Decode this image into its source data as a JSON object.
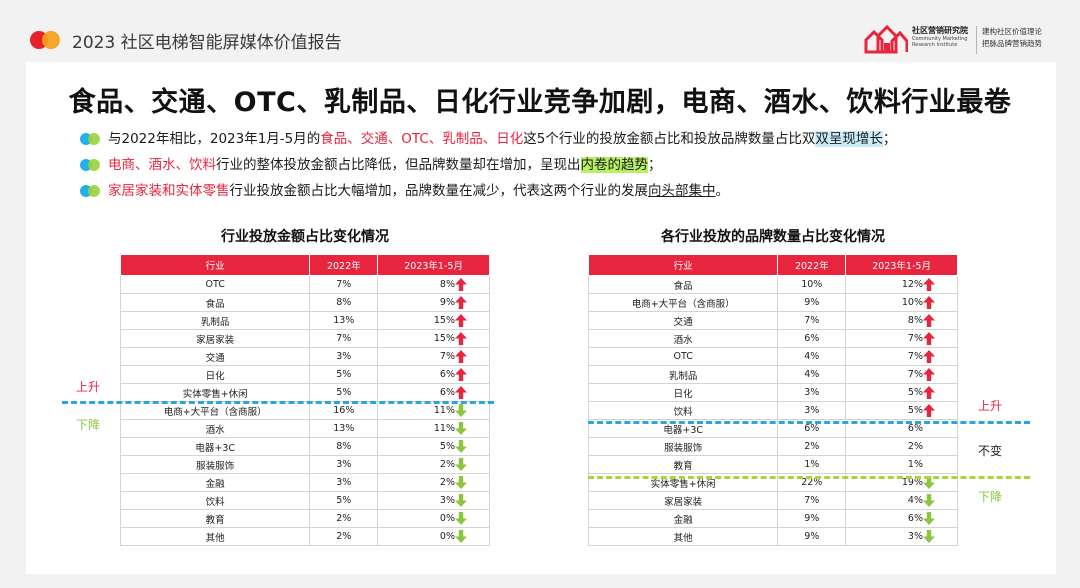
{
  "header": {
    "report_title": "2023 社区电梯智能屏媒体价值报告",
    "brand_name": "社区营销研究院",
    "brand_en": "Community Marketing Research Institute",
    "brand_slogan_1": "建构社区价值理论",
    "brand_slogan_2": "把脉品牌营销趋势"
  },
  "headline": "食品、交通、OTC、乳制品、日化行业竞争加剧，电商、酒水、饮料行业最卷",
  "bullets": {
    "b1": {
      "pre": "与2022年相比，2023年1月-5月的",
      "red": "食品、交通、OTC、乳制品、日化",
      "mid": "这5个行业的投放金额占比和投放品牌数量占比双",
      "hl": "双呈现增长",
      "post": "；"
    },
    "b2": {
      "red": "电商、酒水、饮料",
      "mid": "行业的整体投放金额占比降低，但品牌数量却在增加，呈现出",
      "hl": "内卷的趋势",
      "post": "；"
    },
    "b3": {
      "red": "家居家装和实体零售",
      "mid": "行业投放金额占比大幅增加，品牌数量在减少，代表这两个行业的发展",
      "ul": "向头部集中",
      "post": "。"
    }
  },
  "colors": {
    "accent_red": "#e8253f",
    "up": "#e8253f",
    "down": "#8cc63f",
    "blue_line": "#2aa5e0",
    "green_line": "#a8d43c"
  },
  "labels": {
    "up": "上升",
    "down": "下降",
    "same": "不变"
  },
  "table1": {
    "title": "行业投放金额占比变化情况",
    "headers": [
      "行业",
      "2022年",
      "2023年1-5月"
    ],
    "rows": [
      {
        "name": "OTC",
        "y2022": "7%",
        "y2023": "8%",
        "trend": "up"
      },
      {
        "name": "食品",
        "y2022": "8%",
        "y2023": "9%",
        "trend": "up"
      },
      {
        "name": "乳制品",
        "y2022": "13%",
        "y2023": "15%",
        "trend": "up"
      },
      {
        "name": "家居家装",
        "y2022": "7%",
        "y2023": "15%",
        "trend": "up"
      },
      {
        "name": "交通",
        "y2022": "3%",
        "y2023": "7%",
        "trend": "up"
      },
      {
        "name": "日化",
        "y2022": "5%",
        "y2023": "6%",
        "trend": "up"
      },
      {
        "name": "实体零售+休闲",
        "y2022": "5%",
        "y2023": "6%",
        "trend": "up"
      },
      {
        "name": "电商+大平台（含商服）",
        "y2022": "16%",
        "y2023": "11%",
        "trend": "down"
      },
      {
        "name": "酒水",
        "y2022": "13%",
        "y2023": "11%",
        "trend": "down"
      },
      {
        "name": "电器+3C",
        "y2022": "8%",
        "y2023": "5%",
        "trend": "down"
      },
      {
        "name": "服装服饰",
        "y2022": "3%",
        "y2023": "2%",
        "trend": "down"
      },
      {
        "name": "金融",
        "y2022": "3%",
        "y2023": "2%",
        "trend": "down"
      },
      {
        "name": "饮料",
        "y2022": "5%",
        "y2023": "3%",
        "trend": "down"
      },
      {
        "name": "教育",
        "y2022": "2%",
        "y2023": "0%",
        "trend": "down"
      },
      {
        "name": "其他",
        "y2022": "2%",
        "y2023": "0%",
        "trend": "down"
      }
    ]
  },
  "table2": {
    "title": "各行业投放的品牌数量占比变化情况",
    "headers": [
      "行业",
      "2022年",
      "2023年1-5月"
    ],
    "rows": [
      {
        "name": "食品",
        "y2022": "10%",
        "y2023": "12%",
        "trend": "up"
      },
      {
        "name": "电商+大平台（含商服）",
        "y2022": "9%",
        "y2023": "10%",
        "trend": "up"
      },
      {
        "name": "交通",
        "y2022": "7%",
        "y2023": "8%",
        "trend": "up"
      },
      {
        "name": "酒水",
        "y2022": "6%",
        "y2023": "7%",
        "trend": "up"
      },
      {
        "name": "OTC",
        "y2022": "4%",
        "y2023": "7%",
        "trend": "up"
      },
      {
        "name": "乳制品",
        "y2022": "4%",
        "y2023": "7%",
        "trend": "up"
      },
      {
        "name": "日化",
        "y2022": "3%",
        "y2023": "5%",
        "trend": "up"
      },
      {
        "name": "饮料",
        "y2022": "3%",
        "y2023": "5%",
        "trend": "up"
      },
      {
        "name": "电器+3C",
        "y2022": "6%",
        "y2023": "6%",
        "trend": "same"
      },
      {
        "name": "服装服饰",
        "y2022": "2%",
        "y2023": "2%",
        "trend": "same"
      },
      {
        "name": "教育",
        "y2022": "1%",
        "y2023": "1%",
        "trend": "same"
      },
      {
        "name": "实体零售+休闲",
        "y2022": "22%",
        "y2023": "19%",
        "trend": "down"
      },
      {
        "name": "家居家装",
        "y2022": "7%",
        "y2023": "4%",
        "trend": "down"
      },
      {
        "name": "金融",
        "y2022": "9%",
        "y2023": "6%",
        "trend": "down"
      },
      {
        "name": "其他",
        "y2022": "9%",
        "y2023": "3%",
        "trend": "down"
      }
    ]
  }
}
